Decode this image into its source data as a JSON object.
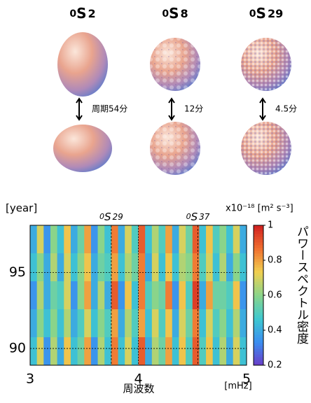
{
  "modes": [
    {
      "order": "0",
      "letter": "S",
      "degree": "2",
      "period": "周期54分",
      "style": "smooth"
    },
    {
      "order": "0",
      "letter": "S",
      "degree": "8",
      "period": "12分",
      "style": "bumpy"
    },
    {
      "order": "0",
      "letter": "S",
      "degree": "29",
      "period": "4.5分",
      "style": "fine"
    }
  ],
  "chart_data": {
    "type": "heatmap",
    "y_label": "[year]",
    "x_label": "周波数",
    "x_unit": "[mHz]",
    "colorbar_label": "x10⁻¹⁸ [m² s⁻³]",
    "colorbar_title": "パワースペクトル密度",
    "xlim": [
      3,
      5
    ],
    "xticks": [
      3,
      4,
      5
    ],
    "ylim": [
      88.9,
      98.1
    ],
    "yticks": [
      90,
      95
    ],
    "clim": [
      0.2,
      1
    ],
    "cticks": [
      0.2,
      0.4,
      0.6,
      0.8,
      1
    ],
    "colormap": [
      "#6a3dc8",
      "#3a8ef0",
      "#3ec8d0",
      "#8ad48a",
      "#f0d050",
      "#f07030",
      "#d02020"
    ],
    "grid": true,
    "annotations": [
      {
        "order": "0",
        "letter": "S",
        "degree": "29",
        "x": 3.75
      },
      {
        "order": "0",
        "letter": "S",
        "degree": "37",
        "x": 4.55
      }
    ],
    "values": [
      [
        0.4,
        0.7,
        0.35,
        0.6,
        0.45,
        0.75,
        0.4,
        0.55,
        0.8,
        0.35,
        0.6,
        0.45,
        0.85,
        0.4,
        0.7,
        0.5,
        0.9,
        0.45,
        0.65,
        0.5,
        0.8,
        0.4,
        0.7,
        0.55,
        0.9,
        0.45,
        0.75,
        0.5,
        0.6,
        0.45,
        0.7,
        0.4
      ],
      [
        0.45,
        0.6,
        0.4,
        0.65,
        0.4,
        0.7,
        0.45,
        0.6,
        0.75,
        0.4,
        0.55,
        0.5,
        0.8,
        0.45,
        0.65,
        0.55,
        0.85,
        0.4,
        0.7,
        0.45,
        0.75,
        0.45,
        0.65,
        0.6,
        0.85,
        0.5,
        0.7,
        0.45,
        0.65,
        0.4,
        0.6,
        0.45
      ],
      [
        0.35,
        0.65,
        0.4,
        0.55,
        0.5,
        0.7,
        0.35,
        0.6,
        0.8,
        0.4,
        0.65,
        0.4,
        0.9,
        0.35,
        0.75,
        0.45,
        0.85,
        0.5,
        0.6,
        0.55,
        0.85,
        0.35,
        0.75,
        0.5,
        0.95,
        0.4,
        0.8,
        0.55,
        0.55,
        0.5,
        0.75,
        0.35
      ],
      [
        0.4,
        0.6,
        0.45,
        0.6,
        0.45,
        0.65,
        0.4,
        0.5,
        0.7,
        0.45,
        0.6,
        0.5,
        0.8,
        0.4,
        0.65,
        0.5,
        0.8,
        0.45,
        0.7,
        0.5,
        0.75,
        0.4,
        0.7,
        0.55,
        0.85,
        0.45,
        0.7,
        0.5,
        0.6,
        0.45,
        0.65,
        0.4
      ],
      [
        0.45,
        0.7,
        0.35,
        0.65,
        0.4,
        0.75,
        0.45,
        0.55,
        0.8,
        0.35,
        0.65,
        0.45,
        0.85,
        0.45,
        0.7,
        0.45,
        0.9,
        0.4,
        0.65,
        0.55,
        0.8,
        0.45,
        0.75,
        0.5,
        0.9,
        0.5,
        0.75,
        0.45,
        0.65,
        0.4,
        0.7,
        0.45
      ]
    ]
  }
}
